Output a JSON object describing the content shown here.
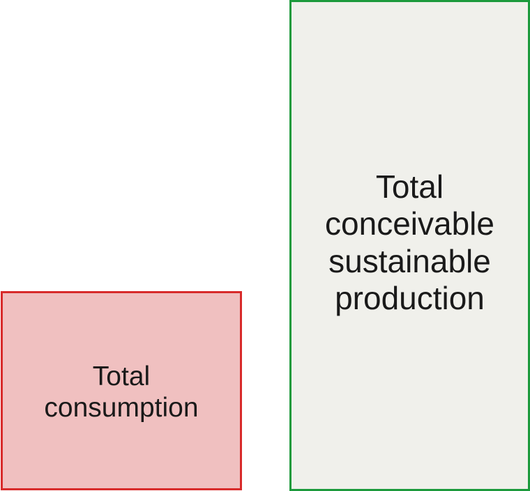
{
  "consumption_box": {
    "label_lines": [
      "Total",
      "consumption"
    ],
    "border_color": "#d82a2a",
    "fill_color": "#f0c0c0"
  },
  "production_box": {
    "label_lines": [
      "Total",
      "conceivable",
      "sustainable",
      "production"
    ],
    "border_color": "#1c9a3c",
    "fill_color": "#f0f0eb"
  }
}
